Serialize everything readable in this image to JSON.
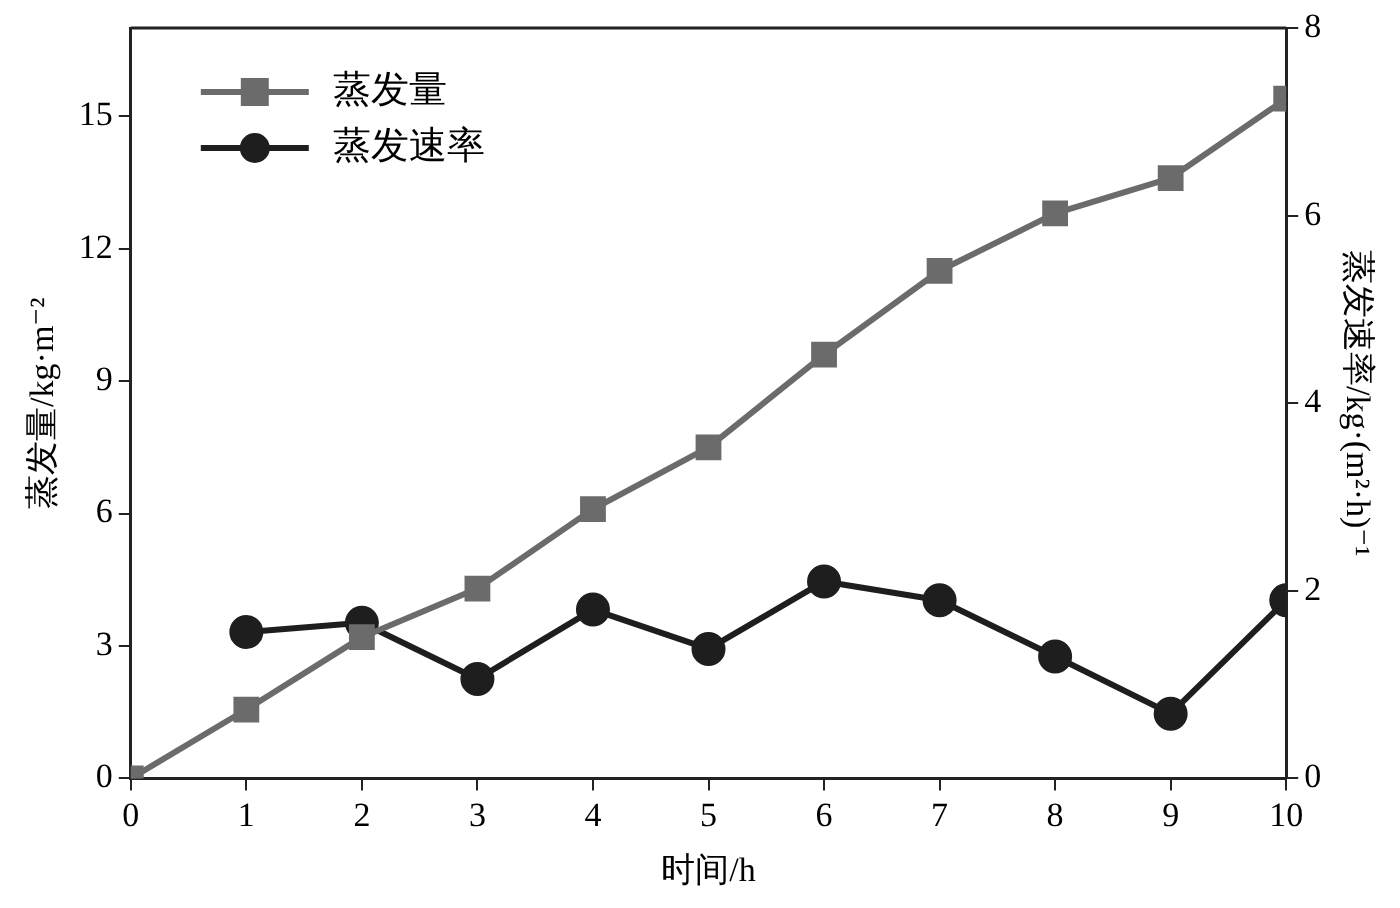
{
  "chart_data": {
    "type": "line",
    "xlabel": "时间/h",
    "ylabel": "蒸发量/kg·m⁻²",
    "y2label": "蒸发速率/kg·(m²·h)⁻¹",
    "x": [
      0,
      1,
      2,
      3,
      4,
      5,
      6,
      7,
      8,
      9,
      10
    ],
    "xlim": [
      0,
      10
    ],
    "xticks": [
      0,
      1,
      2,
      3,
      4,
      5,
      6,
      7,
      8,
      9,
      10
    ],
    "ylim": [
      0,
      17
    ],
    "yticks": [
      0,
      3,
      6,
      9,
      12,
      15
    ],
    "y2lim": [
      0,
      8
    ],
    "y2ticks": [
      0,
      2,
      4,
      6,
      8
    ],
    "legend": "top left",
    "grid": false,
    "series": [
      {
        "name": "蒸发量",
        "color": "#6b6b6b",
        "marker": "square",
        "values": [
          0,
          1.56,
          3.2,
          4.3,
          6.1,
          7.5,
          9.6,
          11.5,
          12.8,
          13.6,
          15.4
        ]
      },
      {
        "name": "蒸发速率",
        "color": "#1e1e1e",
        "marker": "circle",
        "axis": "y2",
        "values": [
          null,
          1.56,
          1.66,
          1.06,
          1.8,
          1.38,
          2.1,
          1.9,
          1.3,
          0.69,
          1.9
        ]
      }
    ]
  }
}
